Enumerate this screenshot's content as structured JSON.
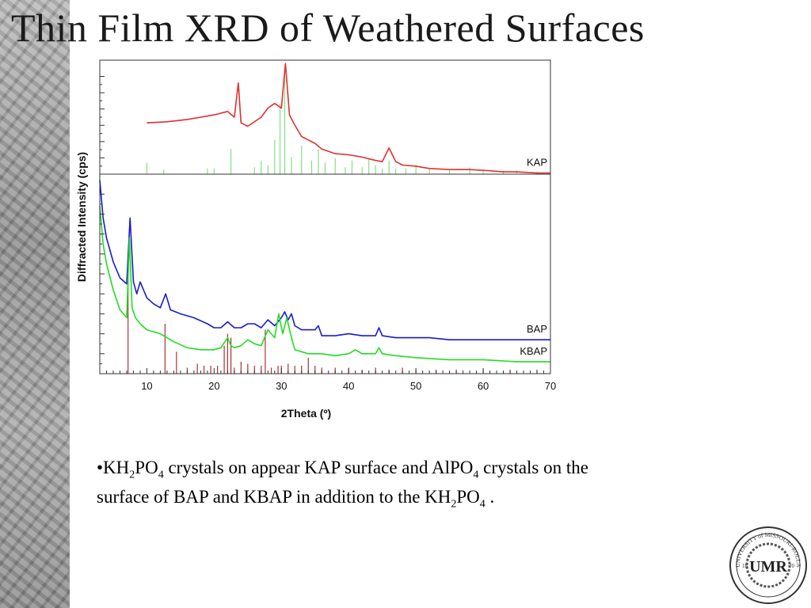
{
  "slide": {
    "title": "Thin Film XRD of Weathered Surfaces",
    "bullet": {
      "prefix": "•KH",
      "s1": "2",
      "t1": "PO",
      "s2": "4",
      "t2": " crystals on appear KAP surface and AlPO",
      "s3": "4",
      "t3": " crystals on the surface of BAP and KBAP in addition to the KH",
      "s4": "2",
      "t4": "PO",
      "s5": "4",
      "t5": " ."
    },
    "logo": {
      "monogram": "UMR",
      "ring_text": "UNIVERSITY of MISSOURI-ROLLA",
      "year_left": "18",
      "year_right": "70"
    }
  },
  "chart_data": {
    "type": "line",
    "xlabel": "2Theta (º)",
    "ylabel": "Diffracted Intensity (cps)",
    "xlim": [
      3,
      70
    ],
    "xticks": [
      10,
      20,
      30,
      40,
      50,
      60,
      70
    ],
    "grid": false,
    "panels": [
      {
        "name": "top",
        "series": [
          {
            "name": "KAP",
            "color": "#e03030",
            "x": [
              10,
              13,
              16,
              18,
              20,
              22,
              23,
              23.6,
              24,
              25,
              27,
              28,
              29,
              30,
              30.6,
              31.2,
              32,
              33,
              34,
              35,
              36,
              38,
              40,
              42,
              44,
              45,
              46,
              47,
              48,
              50,
              52,
              55,
              58,
              61,
              63,
              65,
              68,
              70
            ],
            "y": [
              0.45,
              0.46,
              0.48,
              0.5,
              0.52,
              0.55,
              0.5,
              0.8,
              0.45,
              0.42,
              0.5,
              0.58,
              0.62,
              0.58,
              0.97,
              0.52,
              0.43,
              0.33,
              0.3,
              0.27,
              0.22,
              0.18,
              0.17,
              0.15,
              0.12,
              0.11,
              0.23,
              0.11,
              0.08,
              0.07,
              0.05,
              0.04,
              0.04,
              0.03,
              0.02,
              0.02,
              0.01,
              0.01
            ]
          }
        ],
        "reference_lines": {
          "color": "#88dd88",
          "x": [
            10,
            12.5,
            19,
            20,
            22.5,
            26,
            27,
            28,
            29,
            29.8,
            30.5,
            31.5,
            33,
            34.5,
            35.5,
            36.5,
            38,
            39.5,
            40.5,
            42,
            43,
            44,
            45,
            46,
            47,
            48.5,
            50,
            52,
            55,
            58,
            60,
            63,
            65,
            68
          ],
          "h": [
            0.1,
            0.04,
            0.05,
            0.05,
            0.22,
            0.06,
            0.12,
            0.08,
            0.3,
            0.62,
            0.9,
            0.15,
            0.25,
            0.12,
            0.22,
            0.1,
            0.14,
            0.06,
            0.12,
            0.06,
            0.14,
            0.08,
            0.05,
            0.12,
            0.05,
            0.05,
            0.08,
            0.05,
            0.04,
            0.06,
            0.04,
            0.03,
            0.03,
            0.02
          ]
        }
      },
      {
        "name": "bottom",
        "series": [
          {
            "name": "BAP",
            "color": "#1a1ad0",
            "x": [
              3,
              3.5,
              4,
              5,
              6,
              7,
              7.5,
              8,
              8.5,
              9,
              10,
              11,
              12,
              12.8,
              13.5,
              15,
              17,
              19,
              20,
              21,
              22,
              23,
              24,
              25,
              26,
              27,
              28,
              29,
              30,
              30.5,
              31,
              31.5,
              32,
              33,
              35,
              35.5,
              36,
              38,
              40,
              42,
              44,
              44.5,
              45,
              47,
              50,
              52,
              55,
              58,
              60,
              63,
              65,
              68,
              70
            ],
            "y": [
              0.97,
              0.78,
              0.68,
              0.56,
              0.48,
              0.45,
              0.78,
              0.46,
              0.4,
              0.46,
              0.38,
              0.35,
              0.33,
              0.4,
              0.32,
              0.3,
              0.28,
              0.25,
              0.23,
              0.23,
              0.26,
              0.23,
              0.23,
              0.25,
              0.25,
              0.23,
              0.27,
              0.24,
              0.28,
              0.31,
              0.27,
              0.3,
              0.24,
              0.22,
              0.22,
              0.24,
              0.19,
              0.19,
              0.2,
              0.19,
              0.19,
              0.23,
              0.19,
              0.18,
              0.18,
              0.18,
              0.17,
              0.17,
              0.17,
              0.17,
              0.17,
              0.17,
              0.17
            ]
          },
          {
            "name": "KBAP",
            "color": "#22dd22",
            "x": [
              3,
              3.5,
              4,
              5,
              6,
              7,
              7.4,
              7.8,
              8.3,
              9,
              10,
              12,
              14,
              16,
              18,
              20,
              21,
              22,
              22.5,
              23,
              24,
              25,
              26,
              27,
              28,
              29,
              29.6,
              30.2,
              30.8,
              31.5,
              32,
              34,
              36,
              38,
              40,
              41,
              42,
              44,
              44.5,
              45,
              47,
              50,
              55,
              60,
              65,
              70
            ],
            "y": [
              0.84,
              0.65,
              0.55,
              0.42,
              0.32,
              0.28,
              0.68,
              0.33,
              0.28,
              0.25,
              0.22,
              0.2,
              0.16,
              0.13,
              0.12,
              0.12,
              0.13,
              0.18,
              0.14,
              0.13,
              0.14,
              0.17,
              0.15,
              0.14,
              0.22,
              0.18,
              0.3,
              0.2,
              0.28,
              0.18,
              0.12,
              0.1,
              0.1,
              0.09,
              0.1,
              0.12,
              0.1,
              0.1,
              0.13,
              0.1,
              0.09,
              0.08,
              0.07,
              0.07,
              0.06,
              0.06
            ]
          }
        ],
        "reference_lines": {
          "color": "#b03030",
          "x": [
            7.2,
            12.7,
            14.4,
            16,
            17.5,
            18.5,
            19.5,
            20.5,
            21.5,
            22,
            22.5,
            23,
            24,
            25,
            26,
            27,
            27.6,
            28.5,
            29.5,
            30,
            31,
            32,
            33,
            34,
            35,
            36,
            38,
            40,
            42,
            44,
            46,
            48,
            50,
            53,
            56,
            60,
            64,
            68
          ],
          "h": [
            0.56,
            0.25,
            0.11,
            0.03,
            0.05,
            0.04,
            0.04,
            0.04,
            0.14,
            0.2,
            0.18,
            0.03,
            0.06,
            0.05,
            0.04,
            0.04,
            0.22,
            0.03,
            0.04,
            0.04,
            0.05,
            0.04,
            0.04,
            0.08,
            0.04,
            0.03,
            0.03,
            0.03,
            0.02,
            0.03,
            0.02,
            0.03,
            0.02,
            0.02,
            0.02,
            0.02,
            0.02,
            0.02
          ]
        }
      }
    ]
  }
}
